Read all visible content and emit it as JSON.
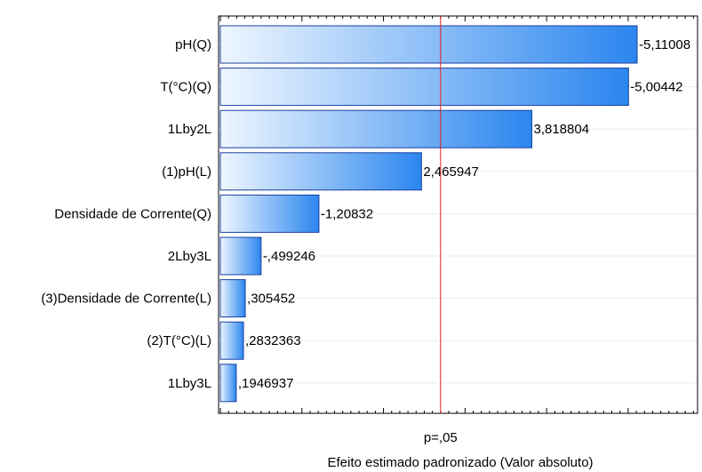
{
  "chart_data": {
    "type": "bar",
    "orientation": "horizontal",
    "categories": [
      "pH(Q)",
      "T(°C)(Q)",
      "1Lby2L",
      "(1)pH(L)",
      "Densidade de Corrente(Q)",
      "2Lby3L",
      "(3)Densidade de Corrente(L)",
      "(2)T(°C)(L)",
      "1Lby3L"
    ],
    "values": [
      5.11008,
      5.00442,
      3.818804,
      2.465947,
      1.20832,
      0.499246,
      0.305452,
      0.2832363,
      0.1946937
    ],
    "data_labels": [
      "-5,11008",
      "-5,00442",
      "3,818804",
      "2,465947",
      "-1,20832",
      "-,499246",
      ",305452",
      ",2832363",
      ",1946937"
    ],
    "xlabel": "Efeito estimado padronizado (Valor absoluto)",
    "reference_line": {
      "value": 2.7,
      "label": "p=,05",
      "color": "#e0201e"
    },
    "xlim": [
      0,
      5.7
    ],
    "grid": true,
    "colors": {
      "bar_start": "#eef6ff",
      "bar_end": "#2b86ef",
      "bar_stroke": "#1a3fa0"
    }
  }
}
